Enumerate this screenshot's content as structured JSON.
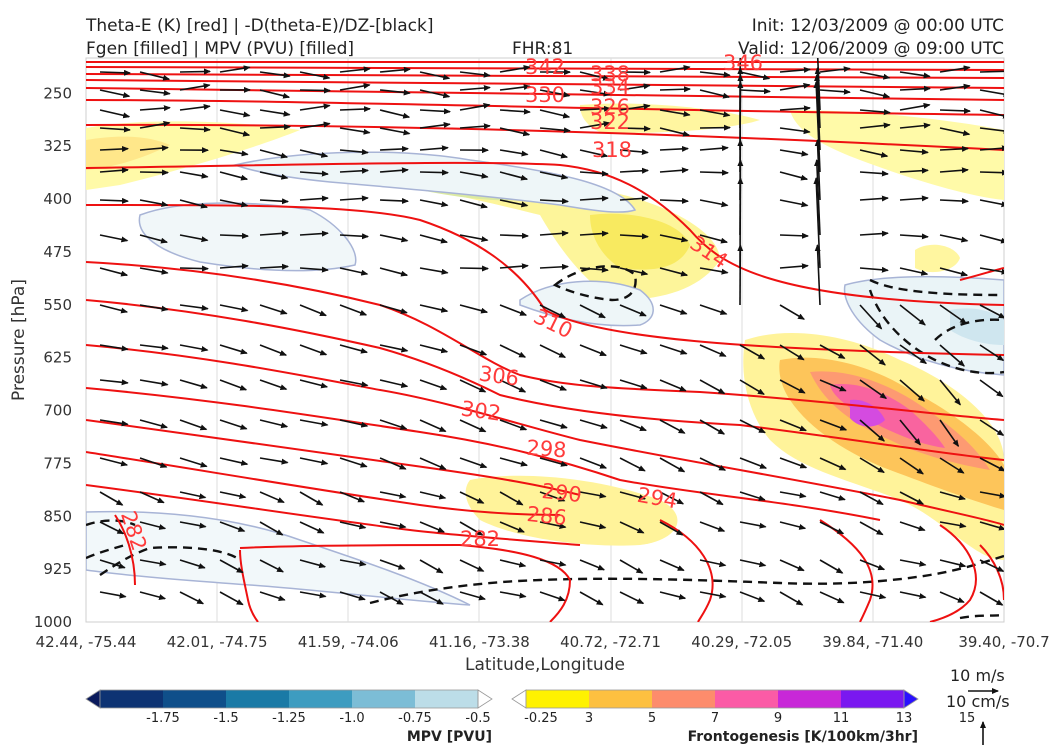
{
  "header": {
    "title_left_1": "Theta-E (K) [red] | -D(theta-E)/DZ-[black]",
    "title_left_2": "Fgen [filled] | MPV (PVU) [filled]",
    "fhr": "FHR:81",
    "init": "Init: 12/03/2009 @ 00:00 UTC",
    "valid": "Valid: 12/06/2009 @ 09:00 UTC"
  },
  "chart_data": {
    "type": "cross-section",
    "title": "Theta-E (K) [red] | -D(theta-E)/DZ-[black] / Fgen [filled] | MPV (PVU) [filled]",
    "xlabel": "Latitude,Longitude",
    "ylabel": "Pressure [hPa]",
    "x_ticks": [
      "42.44, -75.44",
      "42.01, -74.75",
      "41.59, -74.06",
      "41.16, -73.38",
      "40.72, -72.71",
      "40.29, -72.05",
      "39.84, -71.40",
      "39.40, -70.7"
    ],
    "y_ticks": [
      "250",
      "325",
      "400",
      "475",
      "550",
      "625",
      "700",
      "775",
      "850",
      "925",
      "1000"
    ],
    "y_range_hpa": [
      1000,
      200
    ],
    "y_scale": "linear, inverted",
    "grid": true,
    "theta_e_contour_labels": [
      "346",
      "342",
      "338",
      "334",
      "330",
      "326",
      "322",
      "318",
      "314",
      "310",
      "306",
      "302",
      "298",
      "294",
      "290",
      "286",
      "282",
      "282"
    ],
    "theta_e_color": "#ee1111",
    "stability_contour_color": "#000000",
    "mpv_colorbar": {
      "title": "MPV [PVU]",
      "ticks": [
        "-1.75",
        "-1.5",
        "-1.25",
        "-1.0",
        "-0.75",
        "-0.5",
        "-0.25"
      ],
      "colors": [
        "#0a1a5c",
        "#0d3373",
        "#0f4f8a",
        "#1a7aa6",
        "#3d9cc0",
        "#7cbdd6",
        "#bcdde8",
        "#ffffff"
      ]
    },
    "fgen_colorbar": {
      "title": "Frontogenesis [K/100km/3hr]",
      "ticks": [
        "3",
        "5",
        "7",
        "9",
        "11",
        "13",
        "15"
      ],
      "colors": [
        "#ffffff",
        "#fff200",
        "#fdc040",
        "#fd8c6c",
        "#fb5ba6",
        "#c828d8",
        "#7a18f0",
        "#2a10ff"
      ]
    },
    "vector_keys": [
      "10 m/s",
      "10 cm/s"
    ]
  }
}
